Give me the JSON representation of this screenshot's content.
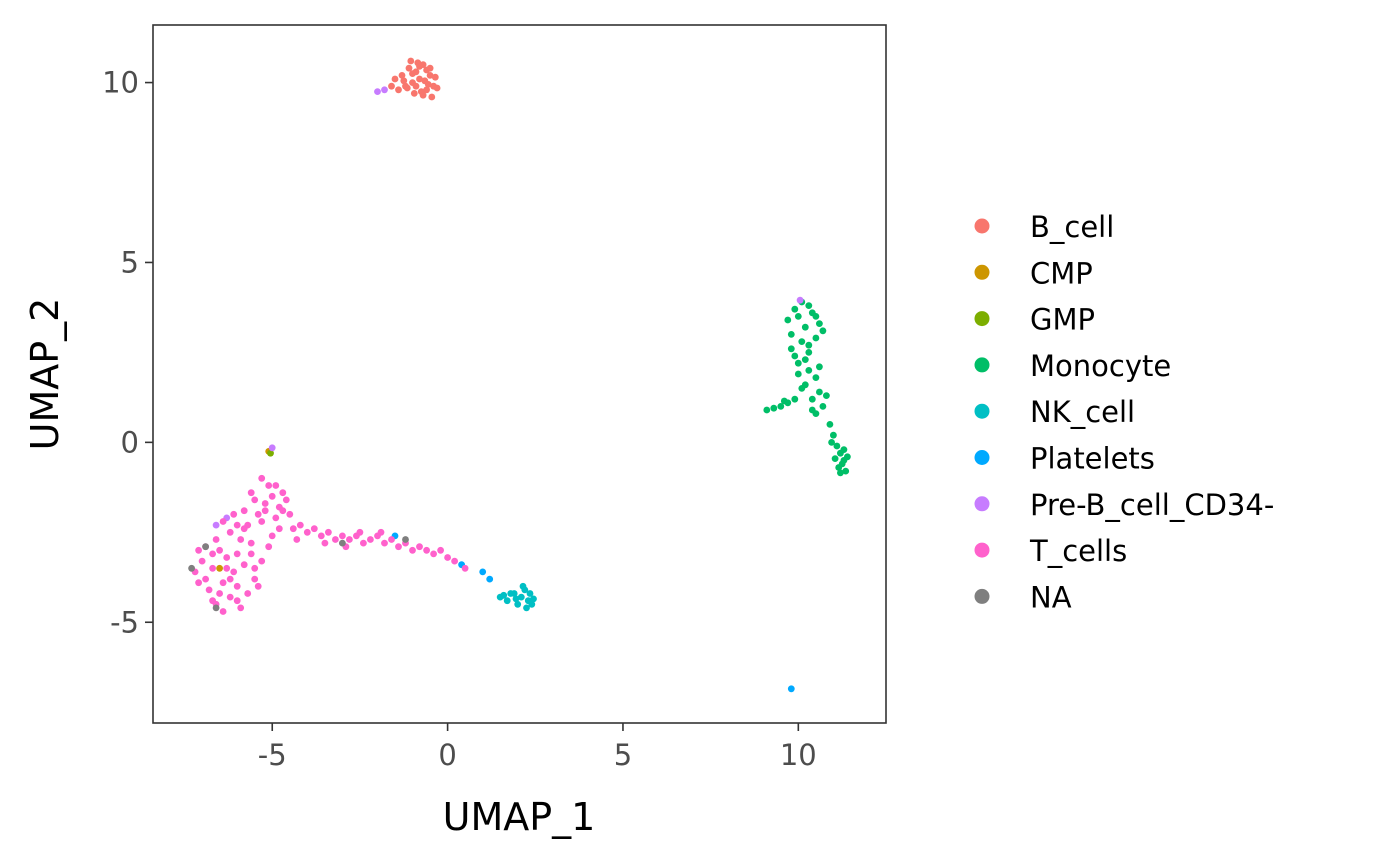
{
  "chart_data": {
    "type": "scatter",
    "xlabel": "UMAP_1",
    "ylabel": "UMAP_2",
    "xlim": [
      -8.4,
      12.5
    ],
    "ylim": [
      -7.8,
      11.6
    ],
    "x_ticks": [
      -5,
      0,
      5,
      10
    ],
    "y_ticks": [
      -5,
      0,
      5,
      10
    ],
    "x_tick_labels": [
      "-5",
      "0",
      "5",
      "10"
    ],
    "y_tick_labels": [
      "-5",
      "0",
      "5",
      "10"
    ],
    "grid": false,
    "legend_position": "right",
    "series": [
      {
        "name": "B_cell",
        "color": "#F8766D",
        "points": [
          [
            -1.0,
            10.0
          ],
          [
            -1.2,
            9.9
          ],
          [
            -0.8,
            10.1
          ],
          [
            -0.6,
            9.8
          ],
          [
            -1.4,
            9.8
          ],
          [
            -0.9,
            10.3
          ],
          [
            -1.1,
            10.4
          ],
          [
            -0.7,
            10.5
          ],
          [
            -0.5,
            10.2
          ],
          [
            -1.3,
            10.2
          ],
          [
            -0.4,
            9.9
          ],
          [
            -1.6,
            9.9
          ],
          [
            -0.95,
            9.7
          ],
          [
            -0.75,
            9.75
          ],
          [
            -1.05,
            10.6
          ],
          [
            -0.85,
            10.55
          ],
          [
            -0.45,
            9.6
          ],
          [
            -0.6,
            10.35
          ],
          [
            -1.25,
            10.05
          ],
          [
            -0.3,
            9.85
          ],
          [
            -0.55,
            9.95
          ],
          [
            -1.5,
            10.1
          ],
          [
            -0.65,
            10.05
          ],
          [
            -1.15,
            9.85
          ],
          [
            -0.35,
            10.15
          ],
          [
            -0.9,
            9.9
          ],
          [
            -0.8,
            10.45
          ],
          [
            -1.0,
            10.25
          ],
          [
            -0.7,
            9.65
          ],
          [
            -0.5,
            10.4
          ]
        ]
      },
      {
        "name": "CMP",
        "color": "#CD9600",
        "points": [
          [
            -5.1,
            -0.25
          ],
          [
            -6.5,
            -3.5
          ]
        ]
      },
      {
        "name": "GMP",
        "color": "#7CAE00",
        "points": [
          [
            -5.05,
            -0.3
          ]
        ]
      },
      {
        "name": "Monocyte",
        "color": "#00BE67",
        "points": [
          [
            10.0,
            3.5
          ],
          [
            10.2,
            3.2
          ],
          [
            9.8,
            3.0
          ],
          [
            10.4,
            3.6
          ],
          [
            10.1,
            2.8
          ],
          [
            10.3,
            2.5
          ],
          [
            9.9,
            2.4
          ],
          [
            10.5,
            2.9
          ],
          [
            10.0,
            2.2
          ],
          [
            10.3,
            2.0
          ],
          [
            10.5,
            1.8
          ],
          [
            10.2,
            1.6
          ],
          [
            10.6,
            1.4
          ],
          [
            10.4,
            1.2
          ],
          [
            10.7,
            1.0
          ],
          [
            10.5,
            0.8
          ],
          [
            9.7,
            3.4
          ],
          [
            10.6,
            3.3
          ],
          [
            10.1,
            3.9
          ],
          [
            10.3,
            3.8
          ],
          [
            9.9,
            3.7
          ],
          [
            10.7,
            3.1
          ],
          [
            10.0,
            1.9
          ],
          [
            9.8,
            2.6
          ],
          [
            10.2,
            2.3
          ],
          [
            10.6,
            2.1
          ],
          [
            10.8,
            1.3
          ],
          [
            10.4,
            0.9
          ],
          [
            10.1,
            1.5
          ],
          [
            9.9,
            1.2
          ],
          [
            9.7,
            1.1
          ],
          [
            9.5,
            1.0
          ],
          [
            9.3,
            0.95
          ],
          [
            9.1,
            0.9
          ],
          [
            9.6,
            1.15
          ],
          [
            10.9,
            0.5
          ],
          [
            11.0,
            0.2
          ],
          [
            11.1,
            -0.1
          ],
          [
            11.2,
            -0.3
          ],
          [
            11.3,
            -0.5
          ],
          [
            11.15,
            -0.7
          ],
          [
            11.35,
            -0.8
          ],
          [
            11.05,
            -0.45
          ],
          [
            11.25,
            -0.6
          ],
          [
            11.4,
            -0.4
          ],
          [
            10.95,
            0.0
          ],
          [
            11.3,
            -0.2
          ],
          [
            11.2,
            -0.85
          ],
          [
            10.5,
            3.5
          ],
          [
            10.3,
            2.7
          ]
        ]
      },
      {
        "name": "NK_cell",
        "color": "#00BFC4",
        "points": [
          [
            1.5,
            -4.3
          ],
          [
            1.7,
            -4.4
          ],
          [
            1.9,
            -4.2
          ],
          [
            2.1,
            -4.3
          ],
          [
            2.2,
            -4.1
          ],
          [
            2.3,
            -4.4
          ],
          [
            2.4,
            -4.5
          ],
          [
            2.0,
            -4.5
          ],
          [
            1.8,
            -4.2
          ],
          [
            2.35,
            -4.2
          ],
          [
            2.25,
            -4.6
          ],
          [
            2.15,
            -4.0
          ],
          [
            1.6,
            -4.25
          ],
          [
            2.45,
            -4.35
          ],
          [
            1.95,
            -4.35
          ]
        ]
      },
      {
        "name": "Platelets",
        "color": "#00A9FF",
        "points": [
          [
            9.8,
            -6.85
          ],
          [
            1.0,
            -3.6
          ],
          [
            1.2,
            -3.8
          ],
          [
            0.4,
            -3.4
          ],
          [
            -1.5,
            -2.6
          ]
        ]
      },
      {
        "name": "Pre-B_cell_CD34-",
        "color": "#C77CFF",
        "points": [
          [
            -5.0,
            -0.15
          ],
          [
            -2.0,
            9.75
          ],
          [
            -1.8,
            9.8
          ],
          [
            10.05,
            3.95
          ],
          [
            -6.3,
            -2.1
          ],
          [
            -6.6,
            -2.3
          ]
        ]
      },
      {
        "name": "T_cells",
        "color": "#FF61CC",
        "points": [
          [
            -6.5,
            -3.0
          ],
          [
            -6.3,
            -3.2
          ],
          [
            -6.7,
            -3.5
          ],
          [
            -6.9,
            -2.9
          ],
          [
            -6.1,
            -3.6
          ],
          [
            -6.4,
            -3.9
          ],
          [
            -6.8,
            -4.1
          ],
          [
            -6.2,
            -4.3
          ],
          [
            -6.6,
            -4.5
          ],
          [
            -6.0,
            -4.0
          ],
          [
            -5.8,
            -3.4
          ],
          [
            -5.6,
            -3.1
          ],
          [
            -5.9,
            -2.7
          ],
          [
            -6.2,
            -2.5
          ],
          [
            -5.7,
            -2.3
          ],
          [
            -5.4,
            -2.0
          ],
          [
            -5.2,
            -1.7
          ],
          [
            -5.0,
            -1.5
          ],
          [
            -4.8,
            -1.8
          ],
          [
            -5.3,
            -2.2
          ],
          [
            -4.9,
            -2.1
          ],
          [
            -4.7,
            -1.4
          ],
          [
            -5.1,
            -1.2
          ],
          [
            -5.5,
            -1.6
          ],
          [
            -5.8,
            -1.9
          ],
          [
            -6.1,
            -2.0
          ],
          [
            -6.4,
            -2.2
          ],
          [
            -7.0,
            -3.3
          ],
          [
            -7.2,
            -3.6
          ],
          [
            -6.9,
            -3.8
          ],
          [
            -6.5,
            -4.2
          ],
          [
            -6.0,
            -4.4
          ],
          [
            -5.7,
            -4.2
          ],
          [
            -5.5,
            -3.8
          ],
          [
            -5.3,
            -3.3
          ],
          [
            -5.6,
            -2.8
          ],
          [
            -6.0,
            -3.1
          ],
          [
            -6.3,
            -3.5
          ],
          [
            -6.7,
            -3.1
          ],
          [
            -7.1,
            -3.0
          ],
          [
            -4.6,
            -1.6
          ],
          [
            -4.5,
            -2.0
          ],
          [
            -4.8,
            -2.4
          ],
          [
            -5.0,
            -2.6
          ],
          [
            -4.4,
            -2.4
          ],
          [
            -4.2,
            -2.3
          ],
          [
            -4.0,
            -2.5
          ],
          [
            -3.8,
            -2.4
          ],
          [
            -3.6,
            -2.6
          ],
          [
            -3.4,
            -2.5
          ],
          [
            -3.2,
            -2.7
          ],
          [
            -3.0,
            -2.6
          ],
          [
            -2.8,
            -2.7
          ],
          [
            -2.6,
            -2.6
          ],
          [
            -2.4,
            -2.8
          ],
          [
            -2.2,
            -2.7
          ],
          [
            -2.0,
            -2.6
          ],
          [
            -1.8,
            -2.8
          ],
          [
            -1.6,
            -2.7
          ],
          [
            -1.4,
            -2.9
          ],
          [
            -1.2,
            -2.8
          ],
          [
            -1.0,
            -3.0
          ],
          [
            -0.8,
            -2.9
          ],
          [
            -0.6,
            -3.0
          ],
          [
            -0.4,
            -3.1
          ],
          [
            -0.2,
            -3.0
          ],
          [
            0.0,
            -3.2
          ],
          [
            0.2,
            -3.3
          ],
          [
            0.5,
            -3.5
          ],
          [
            -2.9,
            -2.9
          ],
          [
            -3.5,
            -2.8
          ],
          [
            -2.5,
            -2.5
          ],
          [
            -1.9,
            -2.5
          ],
          [
            -4.3,
            -2.7
          ],
          [
            -5.9,
            -4.6
          ],
          [
            -6.4,
            -4.7
          ],
          [
            -5.4,
            -4.0
          ],
          [
            -6.7,
            -4.4
          ],
          [
            -5.1,
            -2.9
          ],
          [
            -4.9,
            -1.2
          ],
          [
            -5.6,
            -1.4
          ],
          [
            -5.3,
            -1.0
          ],
          [
            -4.7,
            -1.9
          ],
          [
            -5.8,
            -2.4
          ],
          [
            -6.2,
            -3.8
          ],
          [
            -6.6,
            -2.7
          ],
          [
            -7.1,
            -3.9
          ],
          [
            -5.5,
            -3.5
          ],
          [
            -6.0,
            -2.3
          ],
          [
            -5.2,
            -1.9
          ]
        ]
      },
      {
        "name": "NA",
        "color": "#7F7F7F",
        "points": [
          [
            -7.3,
            -3.5
          ],
          [
            -6.9,
            -2.9
          ],
          [
            -6.6,
            -4.6
          ],
          [
            -3.0,
            -2.8
          ],
          [
            -1.2,
            -2.7
          ]
        ]
      }
    ]
  }
}
